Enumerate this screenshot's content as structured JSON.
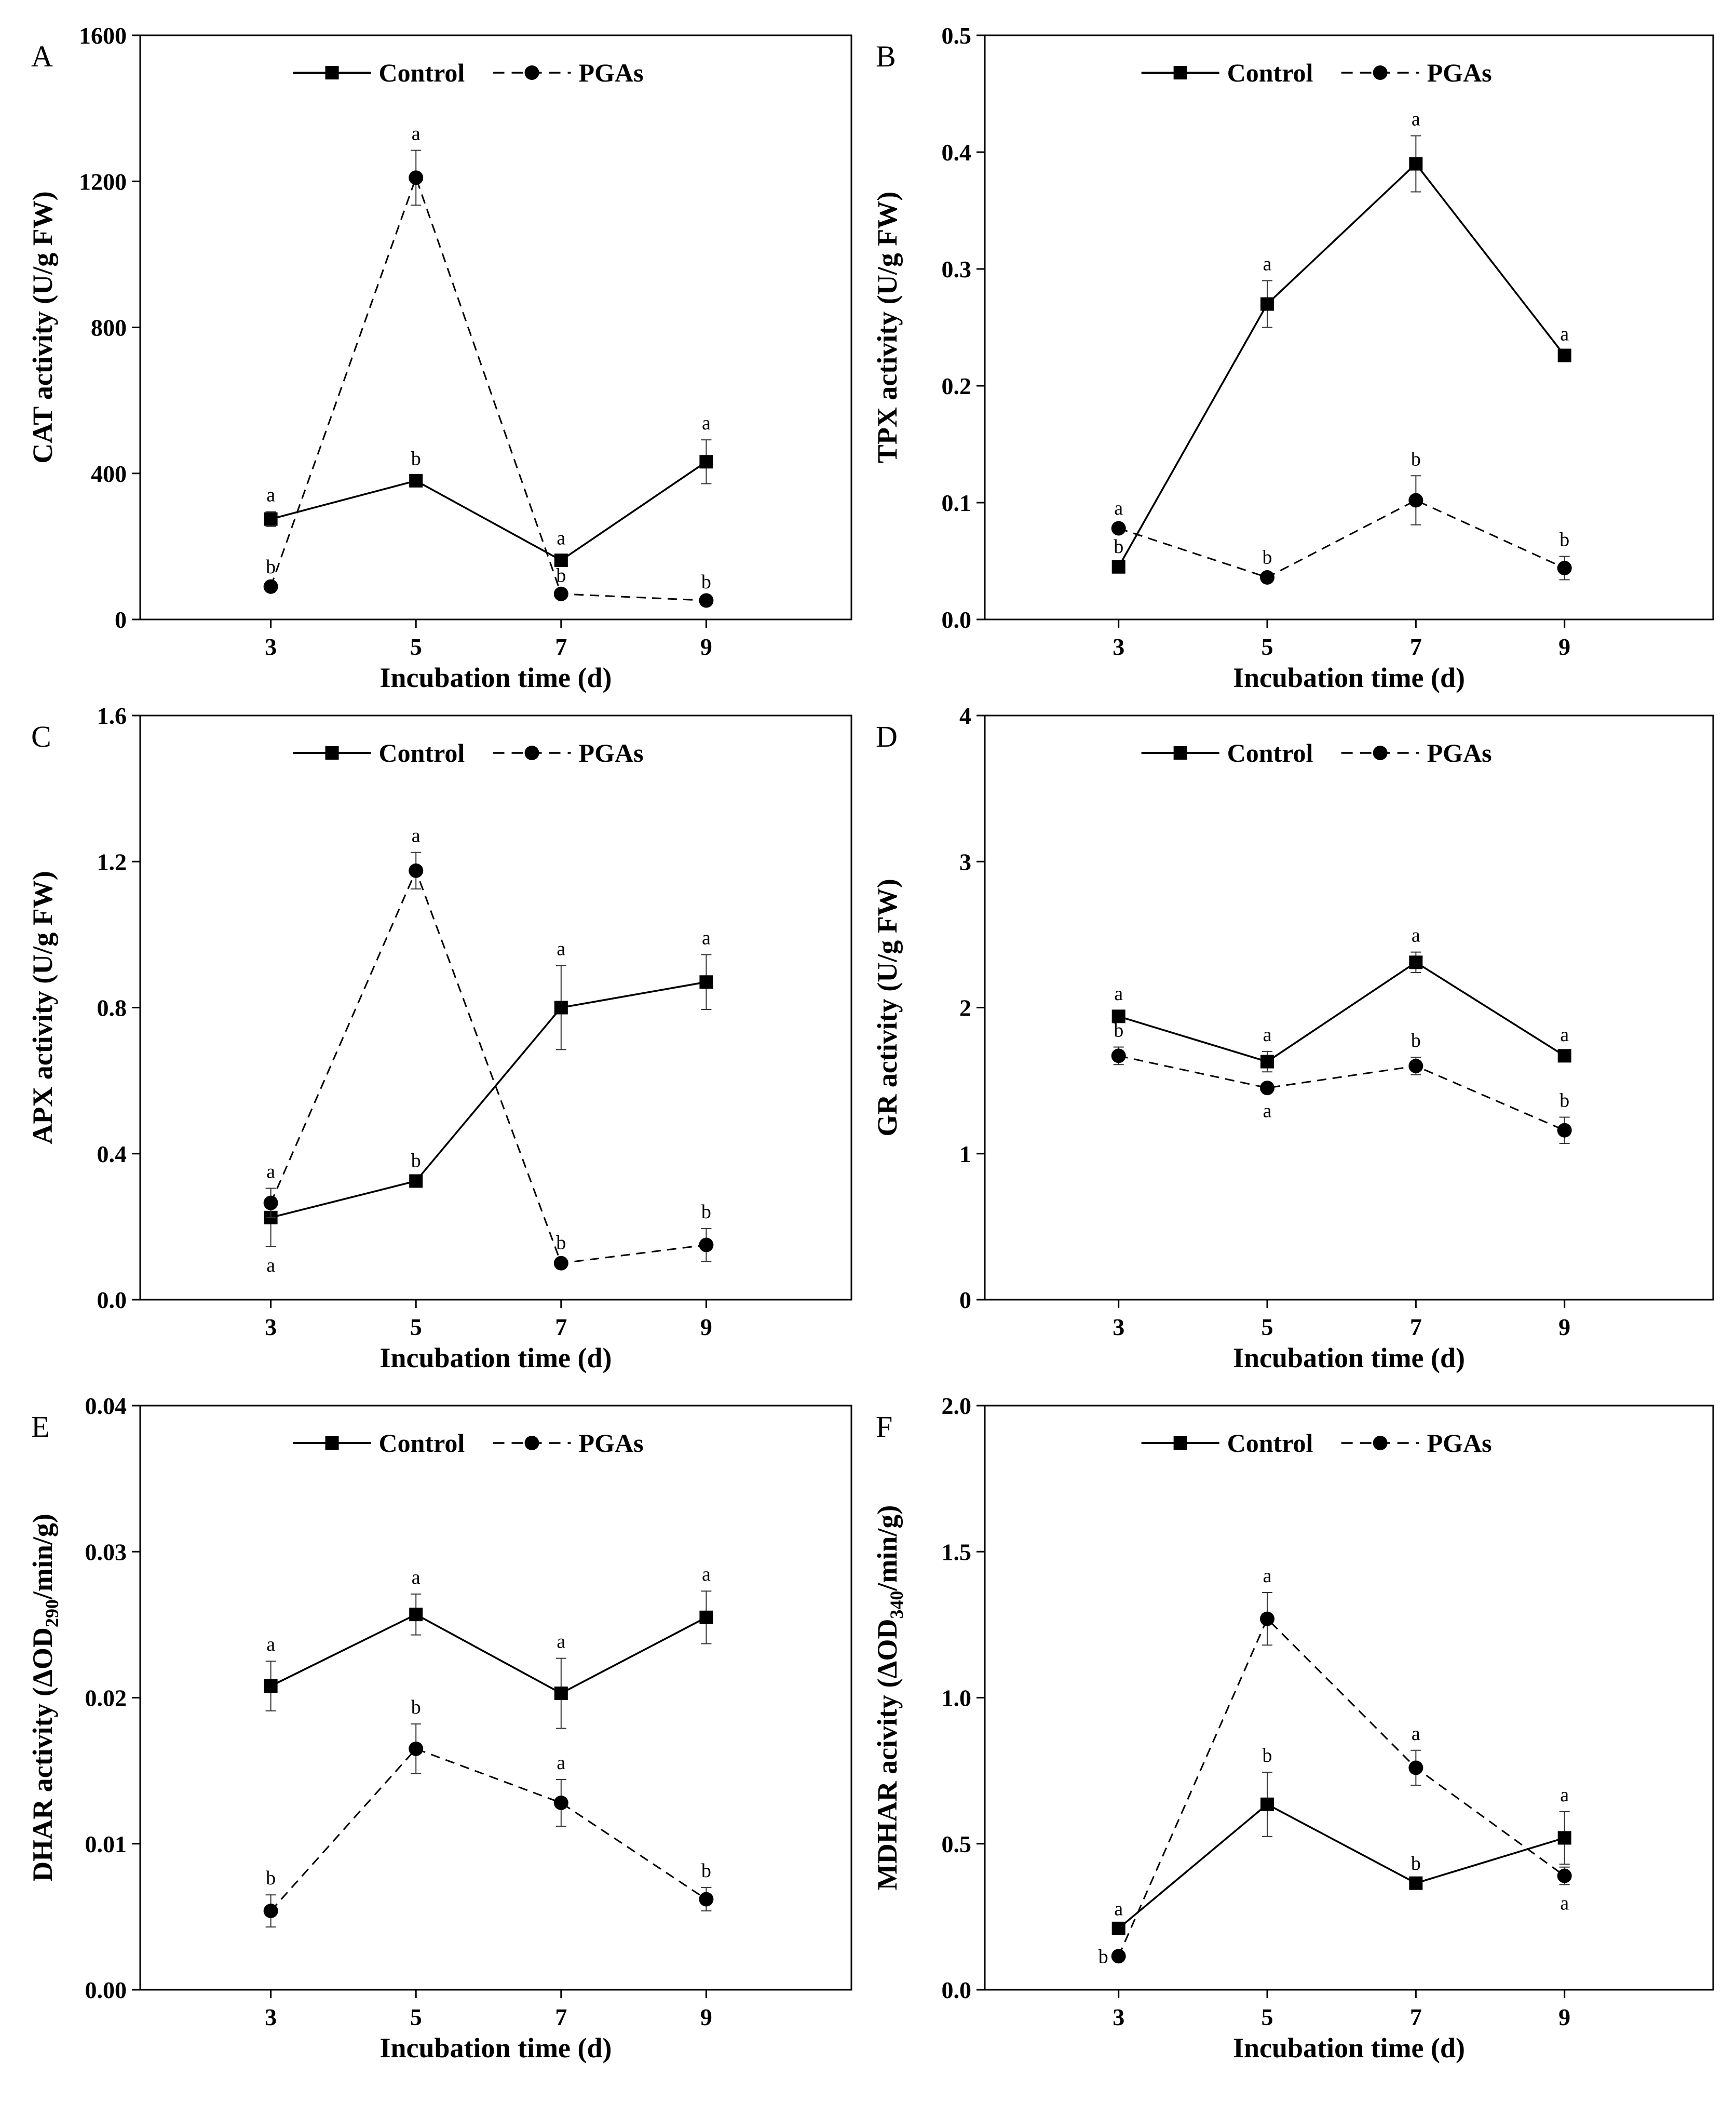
{
  "figure": {
    "legend": {
      "control_label": "Control",
      "pgas_label": "PGAs"
    },
    "colors": {
      "line": "#000000",
      "background": "#ffffff"
    }
  },
  "chart_data": [
    {
      "type": "line",
      "panel": "A",
      "xlabel": "Incubation time (d)",
      "ylabel": "CAT activity (U/g FW)",
      "x": [
        3,
        5,
        7,
        9
      ],
      "xlim": [
        1.2,
        11
      ],
      "ylim": [
        0,
        1600
      ],
      "yticks": [
        0,
        400,
        800,
        1200,
        1600
      ],
      "ytick_labels": [
        "0",
        "400",
        "800",
        "1200",
        "1600"
      ],
      "legend_position": "top",
      "series": [
        {
          "name": "Control",
          "style": "solid-square",
          "values": [
            275,
            380,
            162,
            432
          ],
          "errors": [
            20,
            15,
            15,
            60
          ],
          "sig_labels": [
            "a",
            "b",
            "a",
            "a"
          ],
          "sig_pos": [
            "above",
            "above",
            "above",
            "above"
          ]
        },
        {
          "name": "PGAs",
          "style": "dashed-circle",
          "values": [
            90,
            1210,
            70,
            52
          ],
          "errors": [
            8,
            75,
            5,
            5
          ],
          "sig_labels": [
            "b",
            "a",
            "b",
            "b"
          ],
          "sig_pos": [
            "above",
            "above",
            "above",
            "above"
          ]
        }
      ]
    },
    {
      "type": "line",
      "panel": "B",
      "xlabel": "Incubation time (d)",
      "ylabel": "TPX activity (U/g FW)",
      "x": [
        3,
        5,
        7,
        9
      ],
      "xlim": [
        1.2,
        11
      ],
      "ylim": [
        0,
        0.5
      ],
      "yticks": [
        0,
        0.1,
        0.2,
        0.3,
        0.4,
        0.5
      ],
      "ytick_labels": [
        "0.0",
        "0.1",
        "0.2",
        "0.3",
        "0.4",
        "0.5"
      ],
      "legend_position": "top",
      "series": [
        {
          "name": "Control",
          "style": "solid-square",
          "values": [
            0.045,
            0.27,
            0.39,
            0.226
          ],
          "errors": [
            0.003,
            0.02,
            0.024,
            0.004
          ],
          "sig_labels": [
            "b",
            "a",
            "a",
            "a"
          ],
          "sig_pos": [
            "above",
            "above",
            "above",
            "above"
          ]
        },
        {
          "name": "PGAs",
          "style": "dashed-circle",
          "values": [
            0.078,
            0.036,
            0.102,
            0.044
          ],
          "errors": [
            0.003,
            0.003,
            0.021,
            0.01
          ],
          "sig_labels": [
            "a",
            "b",
            "b",
            "b"
          ],
          "sig_pos": [
            "above",
            "above",
            "above",
            "above"
          ]
        }
      ]
    },
    {
      "type": "line",
      "panel": "C",
      "xlabel": "Incubation time (d)",
      "ylabel": "APX activity (U/g FW)",
      "x": [
        3,
        5,
        7,
        9
      ],
      "xlim": [
        1.2,
        11
      ],
      "ylim": [
        0,
        1.6
      ],
      "yticks": [
        0,
        0.4,
        0.8,
        1.2,
        1.6
      ],
      "ytick_labels": [
        "0.0",
        "0.4",
        "0.8",
        "1.2",
        "1.6"
      ],
      "legend_position": "top",
      "series": [
        {
          "name": "Control",
          "style": "solid-square",
          "values": [
            0.225,
            0.325,
            0.8,
            0.87
          ],
          "errors": [
            0.08,
            0.01,
            0.115,
            0.075
          ],
          "sig_labels": [
            "a",
            "b",
            "a",
            "a"
          ],
          "sig_pos": [
            "below",
            "above",
            "above",
            "above"
          ]
        },
        {
          "name": "PGAs",
          "style": "dashed-circle",
          "values": [
            0.265,
            1.175,
            0.1,
            0.15
          ],
          "errors": [
            0.04,
            0.05,
            0.01,
            0.045
          ],
          "sig_labels": [
            "a",
            "a",
            "b",
            "b"
          ],
          "sig_pos": [
            "above",
            "above",
            "above",
            "above"
          ]
        }
      ]
    },
    {
      "type": "line",
      "panel": "D",
      "xlabel": "Incubation time (d)",
      "ylabel": "GR activity (U/g FW)",
      "x": [
        3,
        5,
        7,
        9
      ],
      "xlim": [
        1.2,
        11
      ],
      "ylim": [
        0,
        4
      ],
      "yticks": [
        0,
        1,
        2,
        3,
        4
      ],
      "ytick_labels": [
        "0",
        "1",
        "2",
        "3",
        "4"
      ],
      "legend_position": "top",
      "series": [
        {
          "name": "Control",
          "style": "solid-square",
          "values": [
            1.94,
            1.63,
            2.31,
            1.67
          ],
          "errors": [
            0.04,
            0.07,
            0.07,
            0.03
          ],
          "sig_labels": [
            "a",
            "a",
            "a",
            "a"
          ],
          "sig_pos": [
            "above",
            "above",
            "above",
            "above"
          ]
        },
        {
          "name": "PGAs",
          "style": "dashed-circle",
          "values": [
            1.67,
            1.45,
            1.6,
            1.16
          ],
          "errors": [
            0.06,
            0.03,
            0.06,
            0.09
          ],
          "sig_labels": [
            "b",
            "a",
            "b",
            "b"
          ],
          "sig_pos": [
            "above",
            "below",
            "above",
            "above"
          ]
        }
      ]
    },
    {
      "type": "line",
      "panel": "E",
      "xlabel": "Incubation time (d)",
      "ylabel": "DHAR activity (ΔOD",
      "ylabel_subscript": "290",
      "ylabel_suffix": "/min/g)",
      "x": [
        3,
        5,
        7,
        9
      ],
      "xlim": [
        1.2,
        11
      ],
      "ylim": [
        0,
        0.04
      ],
      "yticks": [
        0,
        0.01,
        0.02,
        0.03,
        0.04
      ],
      "ytick_labels": [
        "0.00",
        "0.01",
        "0.02",
        "0.03",
        "0.04"
      ],
      "legend_position": "top",
      "series": [
        {
          "name": "Control",
          "style": "solid-square",
          "values": [
            0.0208,
            0.0257,
            0.0203,
            0.0255
          ],
          "errors": [
            0.0017,
            0.0014,
            0.0024,
            0.0018
          ],
          "sig_labels": [
            "a",
            "a",
            "a",
            "a"
          ],
          "sig_pos": [
            "above",
            "above",
            "above",
            "above"
          ]
        },
        {
          "name": "PGAs",
          "style": "dashed-circle",
          "values": [
            0.0054,
            0.0165,
            0.0128,
            0.0062
          ],
          "errors": [
            0.0011,
            0.0017,
            0.0016,
            0.0008
          ],
          "sig_labels": [
            "b",
            "b",
            "a",
            "b"
          ],
          "sig_pos": [
            "above",
            "above",
            "above",
            "above"
          ]
        }
      ]
    },
    {
      "type": "line",
      "panel": "F",
      "xlabel": "Incubation time (d)",
      "ylabel": "MDHAR acivity (ΔOD",
      "ylabel_subscript": "340",
      "ylabel_suffix": "/min/g)",
      "x": [
        3,
        5,
        7,
        9
      ],
      "xlim": [
        1.2,
        11
      ],
      "ylim": [
        0,
        2.0
      ],
      "yticks": [
        0,
        0.5,
        1.0,
        1.5,
        2.0
      ],
      "ytick_labels": [
        "0.0",
        "0.5",
        "1.0",
        "1.5",
        "2.0"
      ],
      "legend_position": "top",
      "series": [
        {
          "name": "Control",
          "style": "solid-square",
          "values": [
            0.21,
            0.635,
            0.365,
            0.52
          ],
          "errors": [
            0.01,
            0.11,
            0.01,
            0.09
          ],
          "sig_labels": [
            "a",
            "b",
            "b",
            "a"
          ],
          "sig_pos": [
            "above",
            "above",
            "above",
            "above"
          ]
        },
        {
          "name": "PGAs",
          "style": "dashed-circle",
          "values": [
            0.115,
            1.27,
            0.76,
            0.39
          ],
          "errors": [
            0.01,
            0.09,
            0.06,
            0.03
          ],
          "sig_labels": [
            "b",
            "a",
            "a",
            "a"
          ],
          "sig_pos": [
            "left",
            "above",
            "above",
            "below"
          ]
        }
      ]
    }
  ]
}
